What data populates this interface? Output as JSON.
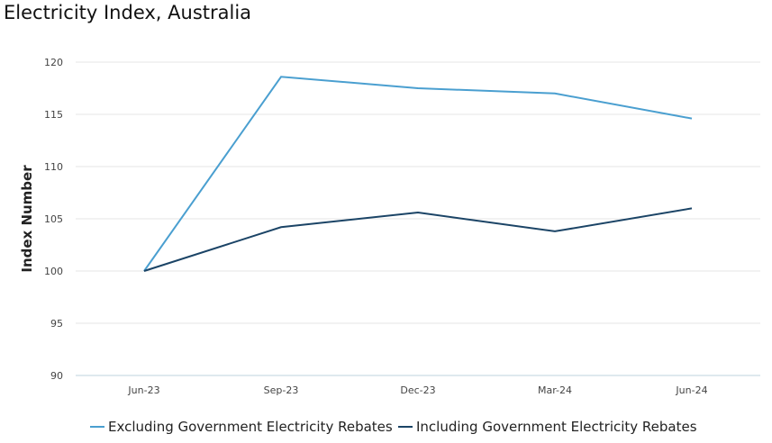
{
  "chart_data": {
    "type": "line",
    "title": "Electricity Index, Australia",
    "xlabel": "",
    "ylabel": "Index Number",
    "ylim": [
      90,
      120
    ],
    "yticks": [
      90,
      95,
      100,
      105,
      110,
      115,
      120
    ],
    "categories": [
      "Jun-23",
      "Sep-23",
      "Dec-23",
      "Mar-24",
      "Jun-24"
    ],
    "grid": true,
    "legend": "bottom",
    "series": [
      {
        "name": "Excluding Government Electricity Rebates",
        "color": "#4a9fd0",
        "values": [
          100,
          118.6,
          117.5,
          117.0,
          114.6
        ]
      },
      {
        "name": "Including Government Electricity Rebates",
        "color": "#1b4466",
        "values": [
          100,
          104.2,
          105.6,
          103.8,
          106.0
        ]
      }
    ]
  }
}
